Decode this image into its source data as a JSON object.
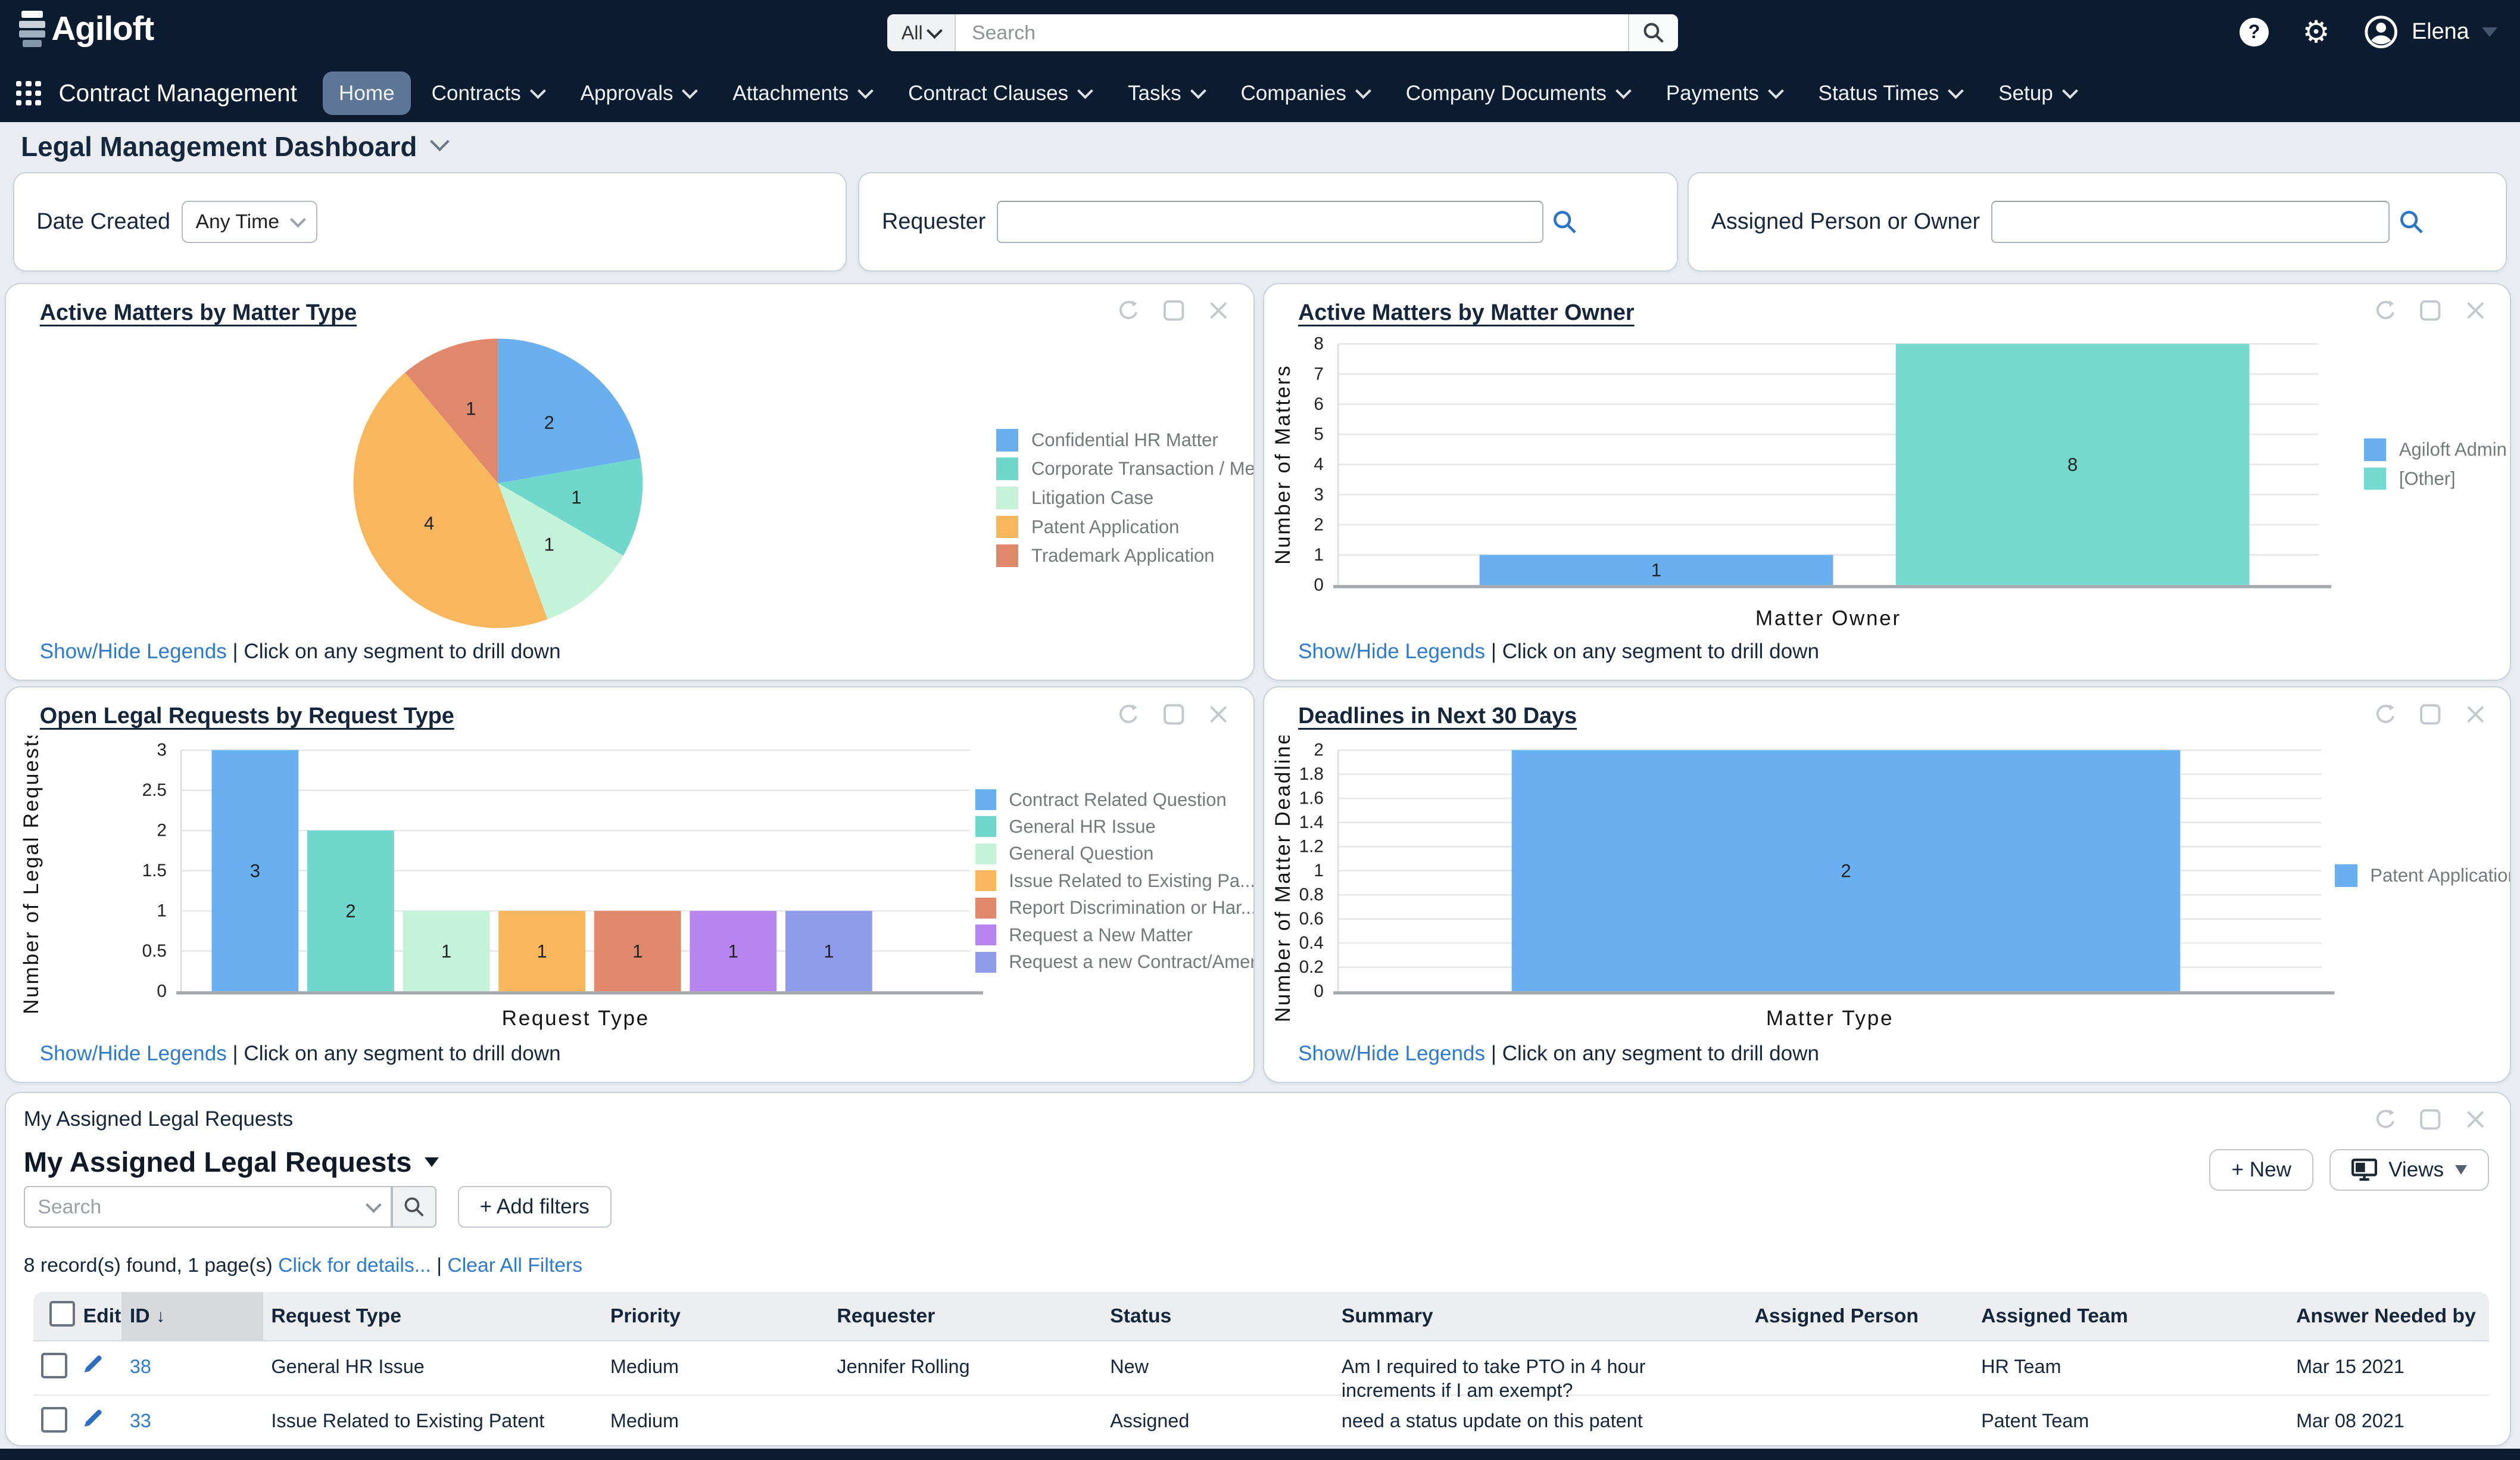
{
  "theme": {
    "topbar_color": "#0c1c30",
    "active_nav_color": "#5e7695",
    "link_color": "#2b7bd3"
  },
  "topbar": {
    "logo_text": "Agiloft",
    "search_scope": "All",
    "search_placeholder": "Search",
    "user_name": "Elena"
  },
  "menubar": {
    "app_label": "Contract Management",
    "items": [
      {
        "label": "Home",
        "active": true,
        "caret": false
      },
      {
        "label": "Contracts",
        "active": false,
        "caret": true
      },
      {
        "label": "Approvals",
        "active": false,
        "caret": true
      },
      {
        "label": "Attachments",
        "active": false,
        "caret": true
      },
      {
        "label": "Contract Clauses",
        "active": false,
        "caret": true
      },
      {
        "label": "Tasks",
        "active": false,
        "caret": true
      },
      {
        "label": "Companies",
        "active": false,
        "caret": true
      },
      {
        "label": "Company Documents",
        "active": false,
        "caret": true
      },
      {
        "label": "Payments",
        "active": false,
        "caret": true
      },
      {
        "label": "Status Times",
        "active": false,
        "caret": true
      },
      {
        "label": "Setup",
        "active": false,
        "caret": true
      }
    ]
  },
  "page": {
    "title": "Legal Management Dashboard"
  },
  "filters": {
    "date_created": {
      "label": "Date Created",
      "value": "Any Time"
    },
    "requester": {
      "label": "Requester",
      "value": ""
    },
    "assigned": {
      "label": "Assigned Person or Owner",
      "value": ""
    }
  },
  "panel_footer": {
    "show_hide": "Show/Hide Legends",
    "separator": "|",
    "drill_hint": "Click on any segment to drill down"
  },
  "chart_data": [
    {
      "type": "pie",
      "title": "Active Matters by Matter Type",
      "labels": [
        "Confidential HR Matter",
        "Corporate Transaction / Merg...",
        "Litigation Case",
        "Patent Application",
        "Trademark Application"
      ],
      "values": [
        2,
        1,
        1,
        4,
        1
      ],
      "colors": [
        "#69b0f1",
        "#6fd7cb",
        "#c5f3da",
        "#f8b75c",
        "#e0886c"
      ],
      "legend_position": "right"
    },
    {
      "type": "bar",
      "title": "Active Matters by Matter Owner",
      "categories": [
        "Agiloft Admin",
        "[Other]"
      ],
      "values": [
        1,
        8
      ],
      "colors": [
        "#69b0f1",
        "#74dacf"
      ],
      "xlabel": "Matter Owner",
      "ylabel": "Number of Matters",
      "ylim": [
        0,
        8
      ],
      "ytick_step": 1,
      "grid": true,
      "legend": [
        "Agiloft Admin",
        "[Other]"
      ],
      "legend_colors": [
        "#69b0f1",
        "#74dacf"
      ],
      "legend_position": "right"
    },
    {
      "type": "bar",
      "title": "Open Legal Requests by Request Type",
      "categories": [
        "Contract Related Question",
        "General HR Issue",
        "General Question",
        "Issue Related to Existing Pa...",
        "Report Discrimination or Har...",
        "Request a New Matter",
        "Request a new Contract/Amend..."
      ],
      "values": [
        3,
        2,
        1,
        1,
        1,
        1,
        1
      ],
      "colors": [
        "#69b0f1",
        "#6fd7cb",
        "#c5f3da",
        "#f8b75c",
        "#e0886c",
        "#b685ef",
        "#8f9cec"
      ],
      "xlabel": "Request Type",
      "ylabel": "Number of Legal Requests",
      "ylim": [
        0,
        3
      ],
      "ytick_step": 0.5,
      "grid": true,
      "legend": [
        "Contract Related Question",
        "General HR Issue",
        "General Question",
        "Issue Related to Existing Pa...",
        "Report Discrimination or Har...",
        "Request a New Matter",
        "Request a new Contract/Amend..."
      ],
      "legend_colors": [
        "#69b0f1",
        "#6fd7cb",
        "#c5f3da",
        "#f8b75c",
        "#e0886c",
        "#b685ef",
        "#8f9cec"
      ],
      "legend_position": "right"
    },
    {
      "type": "bar",
      "title": "Deadlines in Next 30 Days",
      "categories": [
        "Patent Application"
      ],
      "values": [
        2
      ],
      "colors": [
        "#69b0f1"
      ],
      "xlabel": "Matter Type",
      "ylabel": "Number of Matter Deadlines",
      "ylim": [
        0,
        2
      ],
      "ytick_step": 0.2,
      "grid": true,
      "legend": [
        "Patent Application"
      ],
      "legend_colors": [
        "#69b0f1"
      ],
      "legend_position": "right"
    }
  ],
  "table_panel": {
    "panel_title": "My Assigned Legal Requests",
    "heading": "My Assigned Legal Requests",
    "search_placeholder": "Search",
    "add_filters_label": "+ Add filters",
    "new_button": "+ New",
    "views_button": "Views",
    "record_summary": "8 record(s) found, 1 page(s)",
    "details_link": "Click for details...",
    "separator": "|",
    "clear_filters_link": "Clear All Filters",
    "sort_indicator": "↓",
    "columns": [
      "Edit",
      "ID",
      "Request Type",
      "Priority",
      "Requester",
      "Status",
      "Summary",
      "Assigned Person",
      "Assigned Team",
      "Answer Needed by"
    ],
    "rows": [
      {
        "id": "38",
        "request_type": "General HR Issue",
        "priority": "Medium",
        "requester": "Jennifer Rolling",
        "status": "New",
        "summary": "Am I required to take PTO in 4 hour increments if I am exempt?",
        "assigned_person": "",
        "assigned_team": "HR Team",
        "answer_needed_by": "Mar 15 2021"
      },
      {
        "id": "33",
        "request_type": "Issue Related to Existing Patent",
        "priority": "Medium",
        "requester": "",
        "status": "Assigned",
        "summary": "need a status update on this patent",
        "assigned_person": "",
        "assigned_team": "Patent Team",
        "answer_needed_by": "Mar 08 2021"
      }
    ]
  }
}
